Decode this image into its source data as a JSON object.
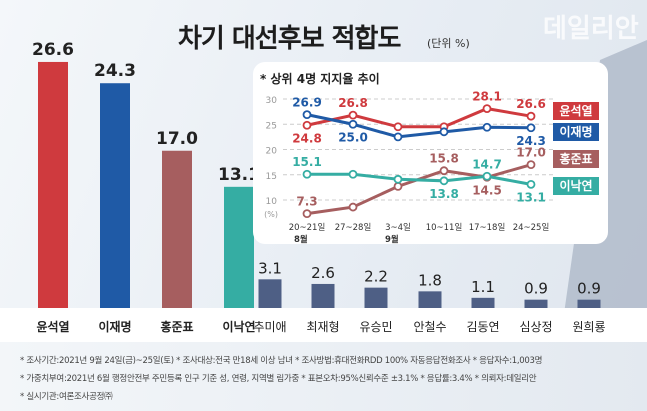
{
  "title": "차기 대선후보 적합도",
  "unit": "(단위 %)",
  "logo": "데일리안",
  "chart_data": [
    {
      "type": "bar",
      "categories": [
        "윤석열",
        "이재명",
        "홍준표",
        "이낙연",
        "추미애",
        "최재형",
        "유승민",
        "안철수",
        "김동연",
        "심상정",
        "원희룡"
      ],
      "values": [
        26.6,
        24.3,
        17.0,
        13.1,
        3.1,
        2.6,
        2.2,
        1.8,
        1.1,
        0.9,
        0.9
      ],
      "value_labels": [
        "26.6",
        "24.3",
        "17.0",
        "13.1",
        "3.1",
        "2.6",
        "2.2",
        "1.8",
        "1.1",
        "0.9",
        "0.9"
      ],
      "colors": [
        "#cf3a3e",
        "#1f5aa6",
        "#a65e5f",
        "#35ada3",
        "#4e5f85",
        "#4e5f85",
        "#4e5f85",
        "#4e5f85",
        "#4e5f85",
        "#4e5f85",
        "#4e5f85"
      ],
      "ylim": [
        0,
        30
      ]
    },
    {
      "type": "line",
      "title": "상위 4명 지지율 추이",
      "title_mark": "*",
      "x": [
        "20~21일",
        "27~28일",
        "3~4일",
        "10~11일",
        "17~18일",
        "24~25일"
      ],
      "month_labels": [
        "8월",
        "",
        "9월",
        "",
        "",
        ""
      ],
      "ylabel": "(%)",
      "yticks": [
        10,
        15,
        20,
        25,
        30
      ],
      "ylim": [
        8,
        30
      ],
      "grid": true,
      "legend": "right",
      "series": [
        {
          "name": "윤석열",
          "color": "#cf3a3e",
          "values": [
            24.8,
            26.8,
            24.5,
            24.5,
            28.1,
            26.6
          ],
          "labels": [
            "24.8",
            "26.8",
            "",
            "",
            "28.1",
            "26.6"
          ],
          "label_pos": [
            "below",
            "above",
            "",
            "",
            "above",
            "above"
          ]
        },
        {
          "name": "이재명",
          "color": "#1f5aa6",
          "values": [
            26.9,
            25.0,
            22.5,
            23.5,
            24.4,
            24.3
          ],
          "labels": [
            "26.9",
            "25.0",
            "",
            "",
            "",
            "24.3"
          ],
          "label_pos": [
            "above",
            "below",
            "",
            "",
            "",
            "below"
          ]
        },
        {
          "name": "홍준표",
          "color": "#a65e5f",
          "values": [
            7.3,
            8.6,
            12.7,
            15.8,
            14.5,
            17.0
          ],
          "labels": [
            "7.3",
            "",
            "",
            "15.8",
            "14.5",
            "17.0"
          ],
          "label_pos": [
            "above",
            "",
            "",
            "above",
            "below",
            "above"
          ]
        },
        {
          "name": "이낙연",
          "color": "#35ada3",
          "values": [
            15.1,
            15.1,
            14.1,
            13.8,
            14.7,
            13.1
          ],
          "labels": [
            "15.1",
            "",
            "",
            "13.8",
            "14.7",
            "13.1"
          ],
          "label_pos": [
            "above",
            "",
            "",
            "below",
            "above",
            "below"
          ]
        }
      ]
    }
  ],
  "footer": [
    "* 조사기간:2021년 9월 24일(금)~25일(토)  * 조사대상:전국 만18세 이상 남녀  * 조사방법:휴대전화RDD 100% 자동응답전화조사  * 응답자수:1,003명",
    "* 가중치부여:2021년 6월 행정안전부 주민등록 인구 기준 성, 연령, 지역별 림가중  * 표본오차:95%신뢰수준 ±3.1%  * 응답률:3.4%  * 의뢰자:데일리안",
    "* 실시기관:여론조사공정㈜"
  ]
}
